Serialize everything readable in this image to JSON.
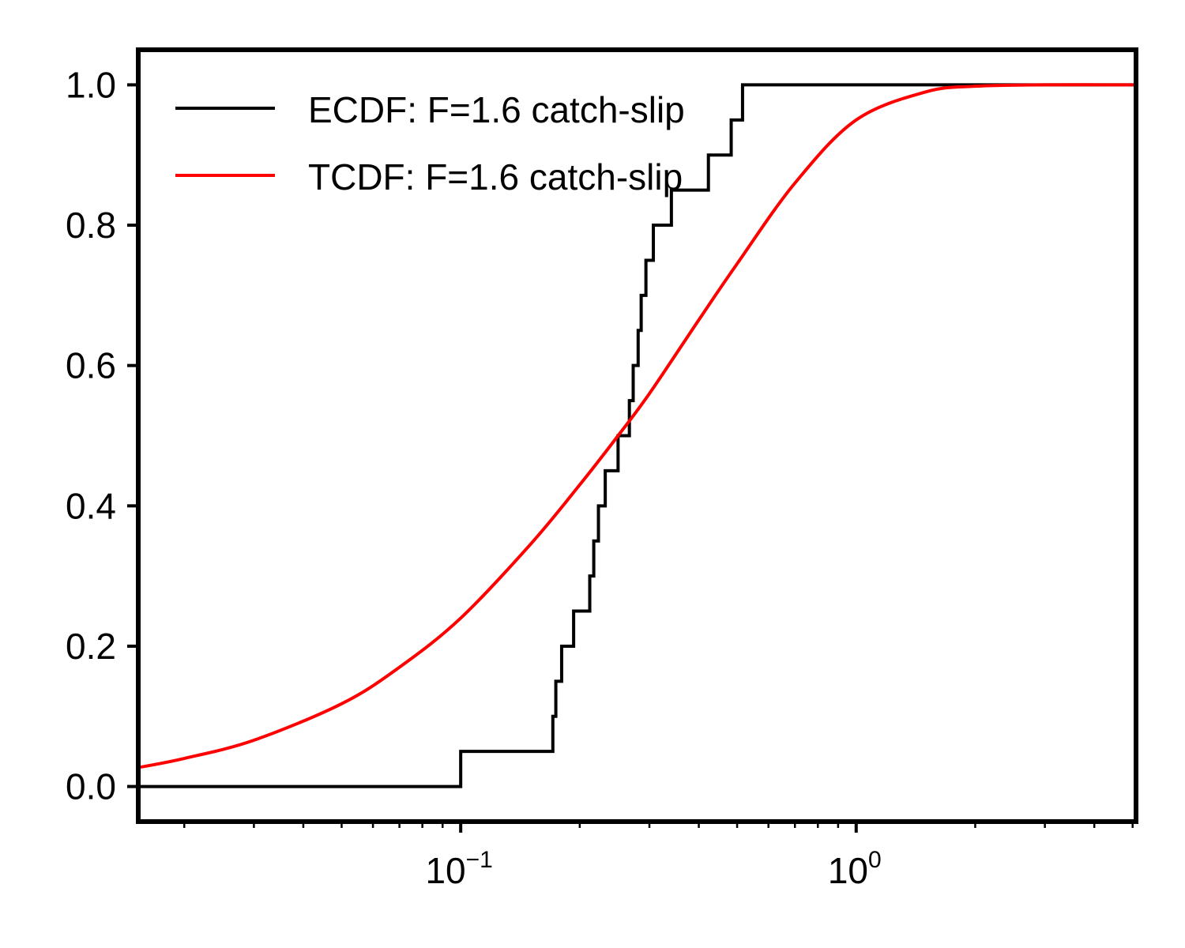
{
  "chart_data": {
    "type": "line",
    "title": "",
    "xlabel": "",
    "ylabel": "",
    "xscale": "log",
    "xlim": [
      0.0153,
      5.1
    ],
    "ylim": [
      -0.05,
      1.05
    ],
    "grid": false,
    "legend_position": "top-left",
    "x_ticks": [
      {
        "value": 0.1,
        "base": "10",
        "exponent": "−1"
      },
      {
        "value": 1,
        "base": "10",
        "exponent": "0"
      }
    ],
    "y_ticks": [
      {
        "value": 0.0,
        "label": "0.0"
      },
      {
        "value": 0.2,
        "label": "0.2"
      },
      {
        "value": 0.4,
        "label": "0.4"
      },
      {
        "value": 0.6,
        "label": "0.6"
      },
      {
        "value": 0.8,
        "label": "0.8"
      },
      {
        "value": 1.0,
        "label": "1.0"
      }
    ],
    "series": [
      {
        "name": "ECDF: F=1.6 catch-slip",
        "kind": "step",
        "color": "#000000",
        "x": [
          0.0153,
          0.1,
          0.171,
          0.174,
          0.18,
          0.193,
          0.212,
          0.217,
          0.223,
          0.232,
          0.25,
          0.267,
          0.273,
          0.281,
          0.286,
          0.294,
          0.307,
          0.341,
          0.423,
          0.483,
          0.516,
          5.1
        ],
        "y": [
          0.0,
          0.05,
          0.1,
          0.15,
          0.2,
          0.25,
          0.3,
          0.35,
          0.4,
          0.45,
          0.5,
          0.55,
          0.6,
          0.65,
          0.7,
          0.75,
          0.8,
          0.85,
          0.9,
          0.95,
          1.0,
          1.0
        ]
      },
      {
        "name": "TCDF: F=1.6 catch-slip",
        "kind": "curve",
        "color": "#ff0000",
        "x": [
          0.0153,
          0.02,
          0.03,
          0.05,
          0.07,
          0.1,
          0.15,
          0.2,
          0.25,
          0.3,
          0.4,
          0.5,
          0.7,
          1.0,
          1.5,
          2.0,
          3.0,
          5.1
        ],
        "y": [
          0.027,
          0.04,
          0.066,
          0.118,
          0.17,
          0.24,
          0.345,
          0.43,
          0.5,
          0.56,
          0.665,
          0.745,
          0.86,
          0.95,
          0.99,
          0.998,
          1.0,
          1.0
        ]
      }
    ]
  }
}
